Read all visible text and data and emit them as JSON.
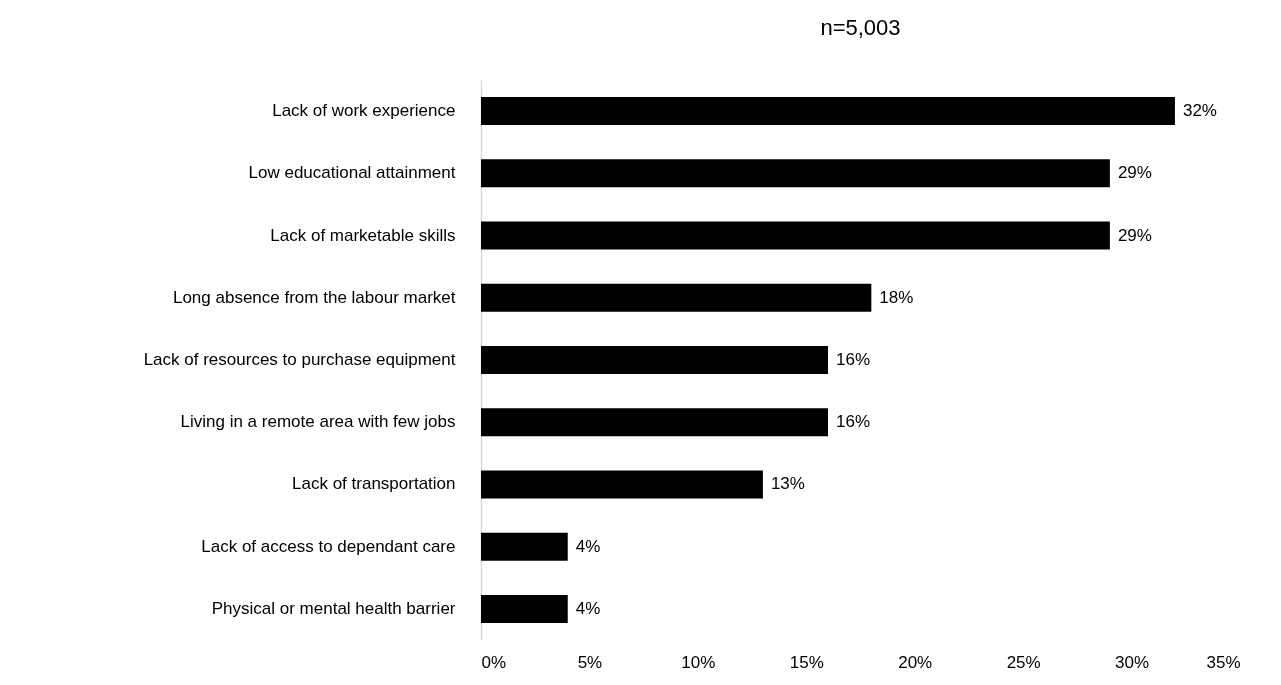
{
  "chart_data": {
    "type": "bar",
    "orientation": "horizontal",
    "title": "n=5,003",
    "categories": [
      "Lack of work experience",
      "Low educational attainment",
      "Lack of marketable skills",
      "Long absence from the labour market",
      "Lack of resources to purchase equipment",
      "Living in a remote area with few jobs",
      "Lack of transportation",
      "Lack of access to dependant care",
      "Physical or mental health barrier"
    ],
    "values": [
      32,
      29,
      29,
      18,
      16,
      16,
      13,
      4,
      4
    ],
    "value_labels": [
      "32%",
      "29%",
      "29%",
      "18%",
      "16%",
      "16%",
      "13%",
      "4%",
      "4%"
    ],
    "color": "#000000",
    "xlim": [
      0,
      35
    ],
    "xticks": [
      {
        "value": 0,
        "label": "0%"
      },
      {
        "value": 5,
        "label": "5%"
      },
      {
        "value": 10,
        "label": "10%"
      },
      {
        "value": 15,
        "label": "15%"
      },
      {
        "value": 20,
        "label": "20%"
      },
      {
        "value": 25,
        "label": "25%"
      },
      {
        "value": 30,
        "label": "30%"
      },
      {
        "value": 35,
        "label": "35%"
      }
    ]
  }
}
